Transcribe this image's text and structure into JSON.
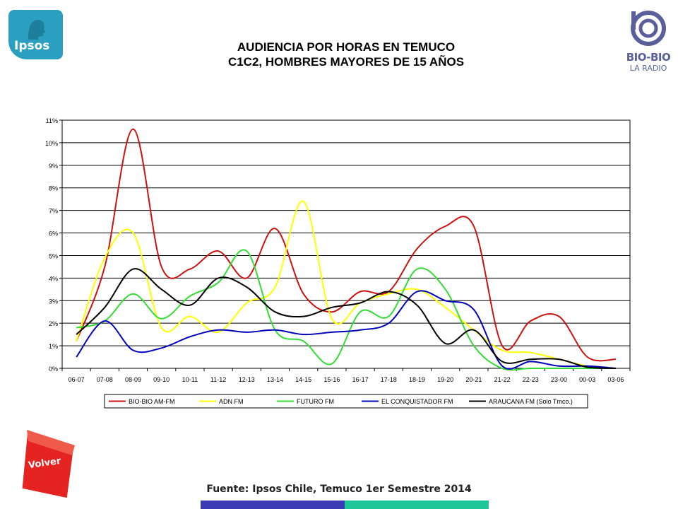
{
  "header": {
    "title_line1": "AUDIENCIA POR HORAS EN TEMUCO",
    "title_line2": "C1C2, HOMBRES MAYORES DE 15 AÑOS"
  },
  "logos": {
    "left_text": "Ipsos",
    "right_name": "BIO-BIO",
    "right_sub": "LA RADIO"
  },
  "nav": {
    "back_label": "Volver"
  },
  "footer": {
    "source": "Fuente: Ipsos Chile, Temuco 1er Semestre 2014"
  },
  "colors": {
    "ipsos_bg": "#2a9fc0",
    "biobio": "#5a5f9b",
    "volver": "#e52320",
    "footer_blue": "#3a3bb5",
    "footer_teal": "#1dc79a"
  },
  "chart_data": {
    "type": "line",
    "categories": [
      "06-07",
      "07-08",
      "08-09",
      "09-10",
      "10-11",
      "11-12",
      "12-13",
      "13-14",
      "14-15",
      "15-16",
      "16-17",
      "17-18",
      "18-19",
      "19-20",
      "20-21",
      "21-22",
      "22-23",
      "23-00",
      "00-03",
      "03-06"
    ],
    "yticks": [
      "0%",
      "1%",
      "2%",
      "3%",
      "4%",
      "5%",
      "6%",
      "7%",
      "8%",
      "9%",
      "10%",
      "11%"
    ],
    "ylim": [
      0,
      11
    ],
    "grid": true,
    "legend_position": "bottom",
    "series": [
      {
        "name": "BIO-BIO AM-FM",
        "color": "#cc1111",
        "values": [
          1.2,
          4.5,
          10.6,
          4.5,
          4.4,
          5.2,
          4.0,
          6.2,
          3.3,
          2.5,
          3.4,
          3.4,
          5.3,
          6.3,
          6.3,
          1.0,
          2.1,
          2.3,
          0.5,
          0.4
        ]
      },
      {
        "name": "ADN FM",
        "color": "#ffff00",
        "values": [
          1.2,
          4.9,
          6.0,
          1.8,
          2.3,
          1.6,
          2.9,
          3.6,
          7.4,
          2.2,
          2.9,
          3.3,
          3.5,
          2.7,
          1.7,
          0.8,
          0.7,
          0.4,
          0.1,
          0.0
        ]
      },
      {
        "name": "FUTURO FM",
        "color": "#33dd33",
        "values": [
          1.8,
          2.1,
          3.3,
          2.2,
          3.2,
          3.8,
          5.2,
          1.7,
          1.2,
          0.2,
          2.5,
          2.3,
          4.4,
          3.5,
          1.0,
          0.0,
          0.0,
          0.0,
          0.0,
          0.0
        ]
      },
      {
        "name": "EL CONQUISTADOR FM",
        "color": "#0000bb",
        "values": [
          0.5,
          2.1,
          0.8,
          0.9,
          1.4,
          1.7,
          1.6,
          1.7,
          1.5,
          1.6,
          1.7,
          2.0,
          3.4,
          3.0,
          2.6,
          0.1,
          0.3,
          0.1,
          0.1,
          0.0
        ]
      },
      {
        "name": "ARAUCANA FM (Solo Tmco.)",
        "color": "#000000",
        "values": [
          1.5,
          2.7,
          4.4,
          3.5,
          2.8,
          4.0,
          3.6,
          2.5,
          2.3,
          2.7,
          2.9,
          3.4,
          2.8,
          1.1,
          1.7,
          0.3,
          0.4,
          0.4,
          0.05,
          0.0
        ]
      }
    ]
  }
}
